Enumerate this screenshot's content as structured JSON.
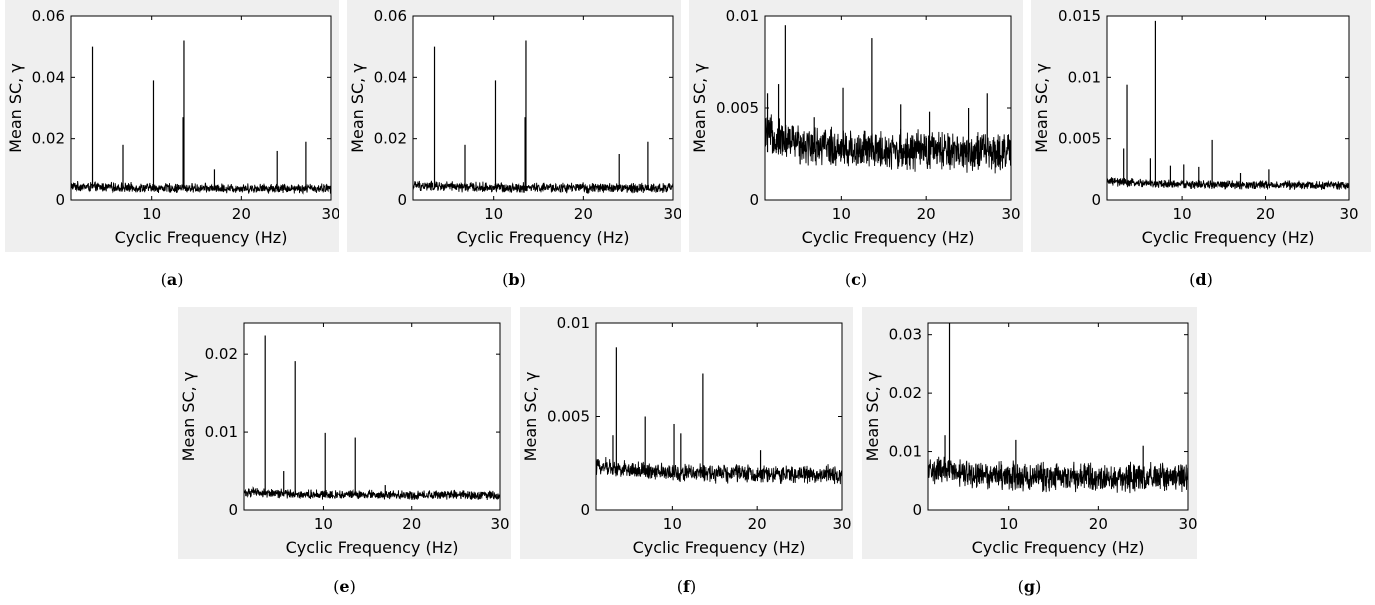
{
  "figure": {
    "panels": [
      {
        "caption": "a",
        "chart_data": {
          "type": "line",
          "xlabel": "Cyclic Frequency (Hz)",
          "ylabel": "Mean SC, γ",
          "xlim": [
            1,
            30
          ],
          "ylim": [
            0,
            0.06
          ],
          "xticks": [
            "10",
            "20",
            "30"
          ],
          "yticks": [
            "0",
            "0.02",
            "0.04",
            "0.06"
          ],
          "noise": {
            "base": 0.0038,
            "spread": 0.0013,
            "extra": 0.0009
          },
          "peaks": [
            {
              "x": 3.4,
              "y": 0.05
            },
            {
              "x": 6.8,
              "y": 0.018
            },
            {
              "x": 10.2,
              "y": 0.039
            },
            {
              "x": 13.6,
              "y": 0.052
            },
            {
              "x": 13.5,
              "y": 0.027
            },
            {
              "x": 17.0,
              "y": 0.01
            },
            {
              "x": 24.0,
              "y": 0.016
            },
            {
              "x": 27.2,
              "y": 0.019
            }
          ]
        }
      },
      {
        "caption": "b",
        "chart_data": {
          "type": "line",
          "xlabel": "Cyclic Frequency (Hz)",
          "ylabel": "Mean SC, γ",
          "xlim": [
            1,
            30
          ],
          "ylim": [
            0,
            0.06
          ],
          "xticks": [
            "10",
            "20",
            "30"
          ],
          "yticks": [
            "0",
            "0.02",
            "0.04",
            "0.06"
          ],
          "noise": {
            "base": 0.0039,
            "spread": 0.0014,
            "extra": 0.001
          },
          "peaks": [
            {
              "x": 3.4,
              "y": 0.05
            },
            {
              "x": 6.8,
              "y": 0.018
            },
            {
              "x": 10.2,
              "y": 0.039
            },
            {
              "x": 13.6,
              "y": 0.052
            },
            {
              "x": 13.5,
              "y": 0.027
            },
            {
              "x": 24.0,
              "y": 0.015
            },
            {
              "x": 27.2,
              "y": 0.019
            }
          ]
        }
      },
      {
        "caption": "c",
        "chart_data": {
          "type": "line",
          "xlabel": "Cyclic Frequency (Hz)",
          "ylabel": "Mean SC, γ",
          "xlim": [
            1,
            30
          ],
          "ylim": [
            0,
            0.01
          ],
          "xticks": [
            "10",
            "20",
            "30"
          ],
          "yticks": [
            "0",
            "0.005",
            "0.01"
          ],
          "noise": {
            "base": 0.0026,
            "spread": 0.0009,
            "extra": 0.0012
          },
          "peaks": [
            {
              "x": 1.3,
              "y": 0.0058
            },
            {
              "x": 2.6,
              "y": 0.0063
            },
            {
              "x": 3.4,
              "y": 0.0095
            },
            {
              "x": 6.8,
              "y": 0.0045
            },
            {
              "x": 10.2,
              "y": 0.0061
            },
            {
              "x": 13.6,
              "y": 0.0088
            },
            {
              "x": 17.0,
              "y": 0.0052
            },
            {
              "x": 20.4,
              "y": 0.0048
            },
            {
              "x": 25.0,
              "y": 0.005
            },
            {
              "x": 27.2,
              "y": 0.0058
            }
          ]
        }
      },
      {
        "caption": "d",
        "chart_data": {
          "type": "line",
          "xlabel": "Cyclic Frequency (Hz)",
          "ylabel": "Mean SC, γ",
          "xlim": [
            1,
            30
          ],
          "ylim": [
            0,
            0.015
          ],
          "xticks": [
            "10",
            "20",
            "30"
          ],
          "yticks": [
            "0",
            "0.005",
            "0.01",
            "0.015"
          ],
          "noise": {
            "base": 0.0012,
            "spread": 0.0003,
            "extra": 0.0004
          },
          "peaks": [
            {
              "x": 3.0,
              "y": 0.0042
            },
            {
              "x": 3.4,
              "y": 0.0094
            },
            {
              "x": 6.2,
              "y": 0.0034
            },
            {
              "x": 6.8,
              "y": 0.0146
            },
            {
              "x": 8.6,
              "y": 0.0028
            },
            {
              "x": 10.2,
              "y": 0.0029
            },
            {
              "x": 12.0,
              "y": 0.0027
            },
            {
              "x": 13.6,
              "y": 0.0049
            },
            {
              "x": 17.0,
              "y": 0.0022
            },
            {
              "x": 20.4,
              "y": 0.0025
            }
          ]
        }
      },
      {
        "caption": "e",
        "chart_data": {
          "type": "line",
          "xlabel": "Cyclic Frequency (Hz)",
          "ylabel": "Mean SC, γ",
          "xlim": [
            1,
            30
          ],
          "ylim": [
            0,
            0.024
          ],
          "xticks": [
            "10",
            "20",
            "30"
          ],
          "yticks": [
            "0",
            "0.01",
            "0.02"
          ],
          "noise": {
            "base": 0.0019,
            "spread": 0.0005,
            "extra": 0.0005
          },
          "peaks": [
            {
              "x": 3.4,
              "y": 0.0224
            },
            {
              "x": 6.8,
              "y": 0.0191
            },
            {
              "x": 5.5,
              "y": 0.005
            },
            {
              "x": 10.2,
              "y": 0.0099
            },
            {
              "x": 13.6,
              "y": 0.0093
            },
            {
              "x": 17.0,
              "y": 0.0032
            }
          ]
        }
      },
      {
        "caption": "f",
        "chart_data": {
          "type": "line",
          "xlabel": "Cyclic Frequency (Hz)",
          "ylabel": "Mean SC, γ",
          "xlim": [
            1,
            30
          ],
          "ylim": [
            0,
            0.01
          ],
          "xticks": [
            "10",
            "20",
            "30"
          ],
          "yticks": [
            "0",
            "0.005",
            "0.01"
          ],
          "noise": {
            "base": 0.0019,
            "spread": 0.0004,
            "extra": 0.0006
          },
          "peaks": [
            {
              "x": 3.0,
              "y": 0.004
            },
            {
              "x": 3.4,
              "y": 0.0087
            },
            {
              "x": 6.8,
              "y": 0.005
            },
            {
              "x": 10.2,
              "y": 0.0046
            },
            {
              "x": 11.0,
              "y": 0.0041
            },
            {
              "x": 13.6,
              "y": 0.0073
            },
            {
              "x": 20.4,
              "y": 0.0032
            }
          ]
        }
      },
      {
        "caption": "g",
        "chart_data": {
          "type": "line",
          "xlabel": "Cyclic Frequency (Hz)",
          "ylabel": "Mean SC, γ",
          "xlim": [
            1,
            30
          ],
          "ylim": [
            0,
            0.032
          ],
          "xticks": [
            "10",
            "20",
            "30"
          ],
          "yticks": [
            "0",
            "0.01",
            "0.02",
            "0.03"
          ],
          "noise": {
            "base": 0.0055,
            "spread": 0.002,
            "extra": 0.0018
          },
          "peaks": [
            {
              "x": 3.4,
              "y": 0.032
            },
            {
              "x": 2.9,
              "y": 0.0128
            },
            {
              "x": 10.8,
              "y": 0.012
            },
            {
              "x": 25.0,
              "y": 0.011
            }
          ]
        }
      }
    ]
  }
}
